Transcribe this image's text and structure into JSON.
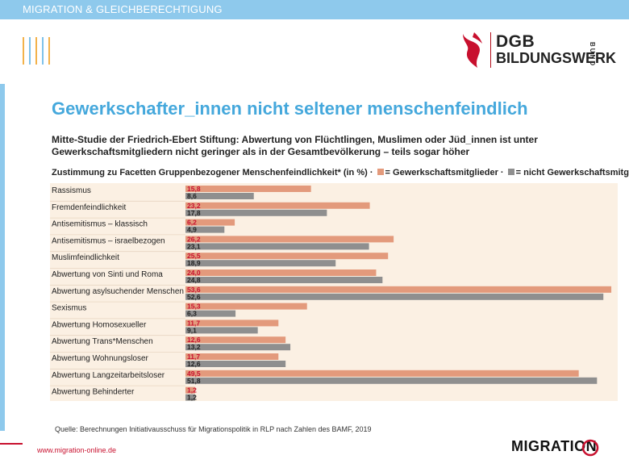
{
  "header": {
    "section_title": "MIGRATION & GLEICHBERECHTIGUNG",
    "stripe_colors": [
      "#f3b24a",
      "#7fc2ea",
      "#f3b24a",
      "#7fc2ea",
      "#f3b24a"
    ]
  },
  "logo": {
    "line1": "DGB",
    "line2": "BILDUNGSWERK",
    "side": "BUND",
    "brand_color": "#c8102e"
  },
  "slide": {
    "title": "Gewerkschafter_innen nicht seltener menschenfeindlich",
    "subtitle": "Mitte-Studie der Friedrich-Ebert Stiftung: Abwertung von Flüchtlingen, Muslimen oder Jüd_innen ist unter Gewerkschaftsmitgliedern nicht geringer als in der Gesamtbevölkerung – teils sogar höher",
    "legend_prefix": "Zustimmung zu Facetten Gruppenbezogener Menschenfeindlichkeit* (in %) ·",
    "legend_a": "= Gewerkschaftsmitglieder ·",
    "legend_b": "= nicht Gewerkschaftsmitglieder"
  },
  "chart_data": {
    "type": "bar",
    "orientation": "horizontal",
    "categories": [
      "Rassismus",
      "Fremdenfeindlichkeit",
      "Antisemitismus – klassisch",
      "Antisemitismus – israelbezogen",
      "Muslimfeindlichkeit",
      "Abwertung von Sinti und Roma",
      "Abwertung asylsuchender Menschen",
      "Sexismus",
      "Abwertung Homosexueller",
      "Abwertung Trans*Menschen",
      "Abwertung Wohnungsloser",
      "Abwertung Langzeitarbeitsloser",
      "Abwertung Behinderter"
    ],
    "series": [
      {
        "name": "Gewerkschaftsmitglieder",
        "color": "#e39a7c",
        "values": [
          15.8,
          23.2,
          6.2,
          26.2,
          25.5,
          24.0,
          53.6,
          15.3,
          11.7,
          12.6,
          11.7,
          49.5,
          1.2
        ],
        "labels": [
          "15,8",
          "23,2",
          "6,2",
          "26,2",
          "25,5",
          "24,0",
          "53,6",
          "15,3",
          "11,7",
          "12,6",
          "11,7",
          "49,5",
          "1,2"
        ],
        "label_color": "#c8102e"
      },
      {
        "name": "nicht Gewerkschaftsmitglieder",
        "color": "#8f8f8f",
        "values": [
          8.6,
          17.8,
          4.9,
          23.1,
          18.9,
          24.8,
          52.6,
          6.3,
          9.1,
          13.2,
          12.6,
          51.8,
          1.2
        ],
        "labels": [
          "8,6",
          "17,8",
          "4,9",
          "23,1",
          "18,9",
          "24,8",
          "52,6",
          "6,3",
          "9,1",
          "13,2",
          "12,6",
          "51,8",
          "1,2"
        ],
        "label_color": "#222222"
      }
    ],
    "xlim": [
      0,
      54
    ],
    "background": "#fbf0e3"
  },
  "source": "Quelle: Berechnungen Initiativausschuss für Migrationspolitik in RLP nach Zahlen des BAMF,  2019",
  "footer": {
    "url": "www.migration-online.de",
    "logo_text": "MIGRATION"
  }
}
